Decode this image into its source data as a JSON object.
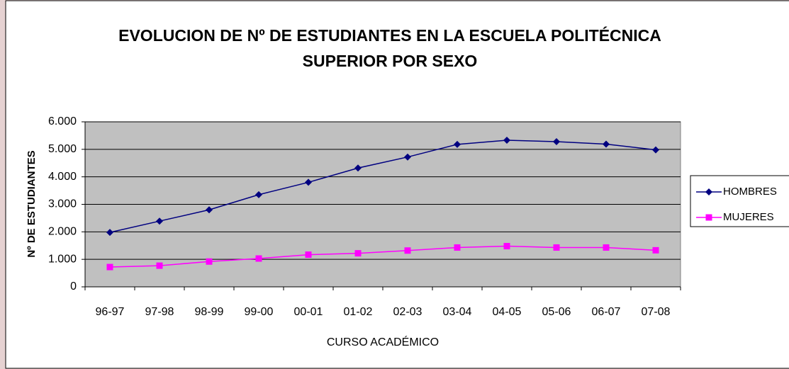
{
  "chart_data": {
    "type": "line",
    "title": "EVOLUCION DE Nº DE ESTUDIANTES EN LA ESCUELA POLITÉCNICA SUPERIOR POR SEXO",
    "xlabel": "CURSO ACADÉMICO",
    "ylabel": "Nº DE ESTUDIANTES",
    "categories": [
      "96-97",
      "97-98",
      "98-99",
      "99-00",
      "00-01",
      "01-02",
      "02-03",
      "03-04",
      "04-05",
      "05-06",
      "06-07",
      "07-08"
    ],
    "series": [
      {
        "name": "HOMBRES",
        "color": "#000080",
        "marker": "diamond",
        "values": [
          1980,
          2390,
          2800,
          3350,
          3800,
          4320,
          4720,
          5180,
          5330,
          5280,
          5190,
          4980
        ]
      },
      {
        "name": "MUJERES",
        "color": "#ff00ff",
        "marker": "square",
        "values": [
          720,
          770,
          920,
          1030,
          1170,
          1220,
          1320,
          1430,
          1480,
          1430,
          1430,
          1330
        ]
      }
    ],
    "ylim": [
      0,
      6000
    ],
    "yticks": [
      0,
      {
        "value": 1000,
        "label": "1.000"
      },
      {
        "value": 2000,
        "label": "2.000"
      },
      {
        "value": 3000,
        "label": "3.000"
      },
      {
        "value": 4000,
        "label": "4.000"
      },
      {
        "value": 5000,
        "label": "5.000"
      },
      {
        "value": 6000,
        "label": "6.000"
      }
    ],
    "grid": true,
    "plot_background": "#c0c0c0",
    "legend": "right"
  }
}
